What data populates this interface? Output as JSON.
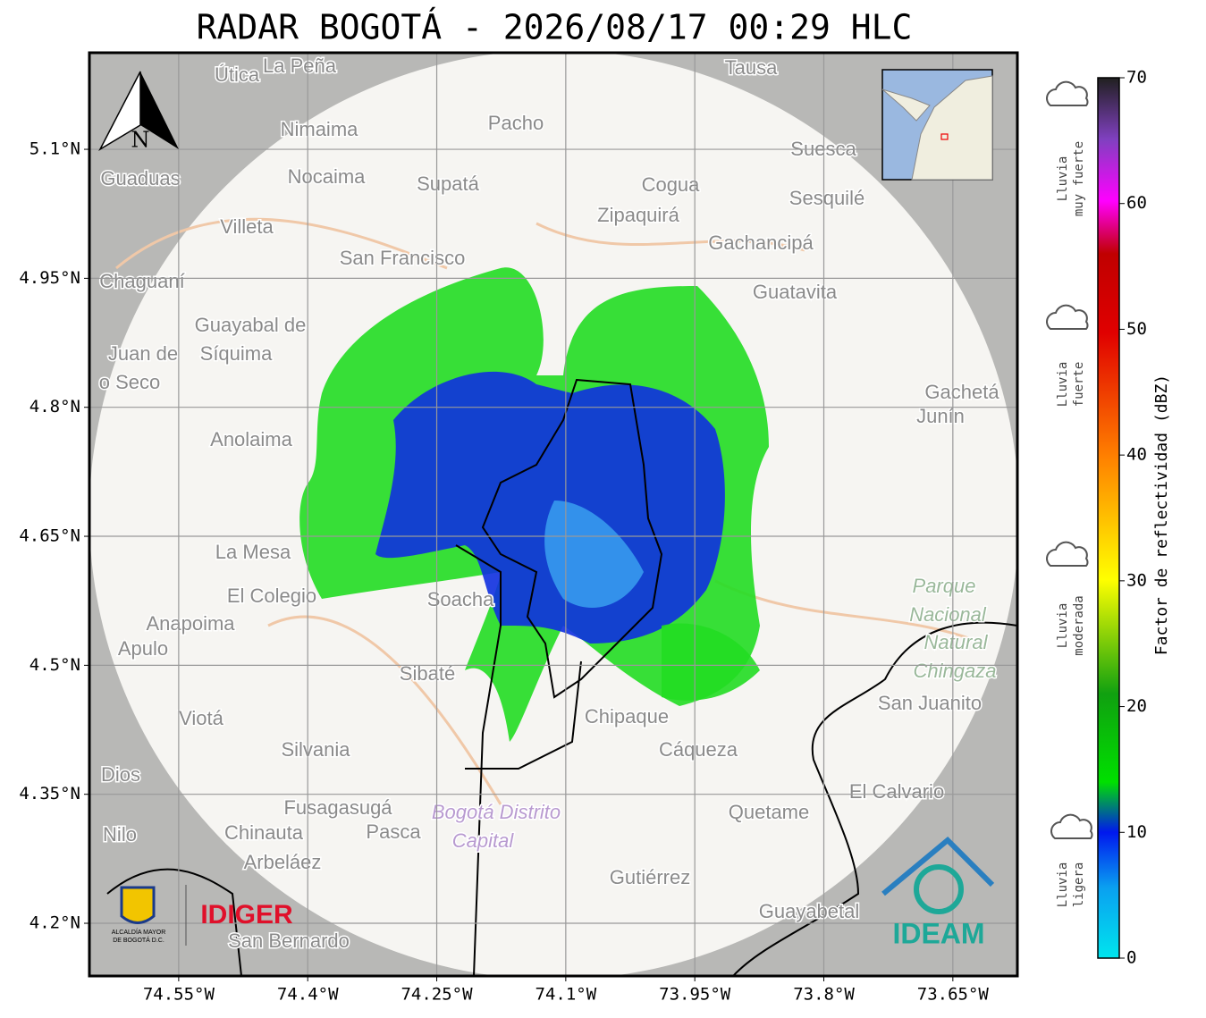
{
  "title": "RADAR BOGOTÁ - 2026/08/17 00:29 HLC",
  "map": {
    "xlim": [
      -74.6538,
      -73.575
    ],
    "ylim": [
      4.1387,
      5.2123
    ],
    "grid": true,
    "xticks": [
      {
        "value": -74.55,
        "label": "74.55°W"
      },
      {
        "value": -74.4,
        "label": "74.4°W"
      },
      {
        "value": -74.25,
        "label": "74.25°W"
      },
      {
        "value": -74.1,
        "label": "74.1°W"
      },
      {
        "value": -73.95,
        "label": "73.95°W"
      },
      {
        "value": -73.8,
        "label": "73.8°W"
      },
      {
        "value": -73.65,
        "label": "73.65°W"
      }
    ],
    "yticks": [
      {
        "value": 5.1,
        "label": "5.1°N"
      },
      {
        "value": 4.95,
        "label": "4.95°N"
      },
      {
        "value": 4.8,
        "label": "4.8°N"
      },
      {
        "value": 4.65,
        "label": "4.65°N"
      },
      {
        "value": 4.5,
        "label": "4.5°N"
      },
      {
        "value": 4.35,
        "label": "4.35°N"
      },
      {
        "value": 4.2,
        "label": "4.2°N"
      }
    ],
    "north_label": "N",
    "places": [
      "Útica",
      "La Peña",
      "Tausa",
      "Pacho",
      "Nimaima",
      "Suesca",
      "Guaduas",
      "Nocaima",
      "Supatá",
      "Cogua",
      "Sesquilé",
      "Zipaquirá",
      "Villeta",
      "Gachancipá",
      "San Francisco",
      "Chaguaní",
      "Guatavita",
      "Guayabal de",
      "Síquima",
      "Juan de",
      "o Seco",
      "Gachetá",
      "Junín",
      "Anolaima",
      "La Mesa",
      "Parque",
      "El Colegio",
      "Soacha",
      "Nacional",
      "Anapoima",
      "Natural",
      "Apulo",
      "Chingaza",
      "Sibaté",
      "San Juanito",
      "Viotá",
      "Chipaque",
      "Silvania",
      "Cáqueza",
      "Dios",
      "El Calvario",
      "Fusagasugá",
      "Quetame",
      "Bogotá Distrito",
      "Nilo",
      "Chinauta",
      "Pasca",
      "Capital",
      "Arbeláez",
      "Gutiérrez",
      "Guayabetal",
      "San Bernardo"
    ]
  },
  "colorbar": {
    "label": "Factor de reflectividad (dBZ)",
    "lim": [
      0,
      70
    ],
    "ticks": [
      0,
      10,
      20,
      30,
      40,
      50,
      60,
      70
    ]
  },
  "legend": [
    {
      "lines": [
        "Lluvia",
        "muy fuerte"
      ]
    },
    {
      "lines": [
        "Lluvia",
        "fuerte"
      ]
    },
    {
      "lines": [
        "Lluvia",
        "moderada"
      ]
    },
    {
      "lines": [
        "Lluvia",
        "ligera"
      ]
    }
  ],
  "logos": {
    "alcaldia": [
      "ALCALDÍA MAYOR",
      "DE BOGOTÁ D.C."
    ],
    "idiger": "IDIGER",
    "ideam": "IDEAM"
  }
}
